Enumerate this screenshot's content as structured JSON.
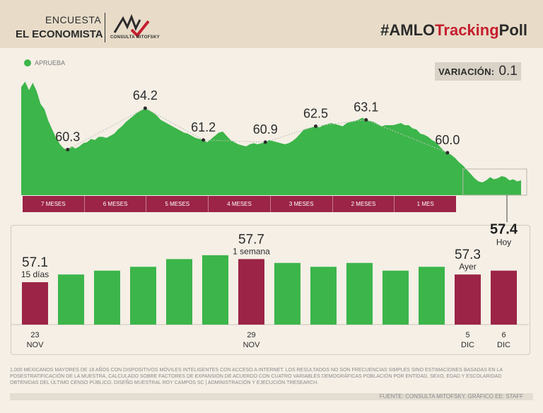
{
  "header": {
    "brand_line1": "ENCUESTA",
    "brand_line2": "EL ECONOMISTA",
    "logo_text": "CONSULTA MITOFSKY",
    "hashtag_part1": "#AMLO",
    "hashtag_part2": "Tracking",
    "hashtag_part3": "Poll"
  },
  "legend": {
    "label": "APRUEBA",
    "color": "#3cb54a"
  },
  "variation": {
    "label": "VARIACIÓN:",
    "value": "0.1"
  },
  "colors": {
    "green": "#3cb54a",
    "maroon": "#9b2447",
    "accent": "#c41f2e"
  },
  "chart_data": [
    {
      "type": "area",
      "title": "APRUEBA",
      "series": [
        {
          "name": "APRUEBA",
          "values": [
            66.2,
            66.7,
            65.9,
            66.6,
            65.8,
            64.6,
            64.1,
            63.0,
            62.2,
            61.4,
            60.8,
            60.4,
            60.3,
            60.6,
            60.4,
            60.6,
            60.9,
            61.0,
            61.3,
            61.2,
            61.5,
            61.5,
            61.4,
            61.6,
            61.8,
            62.2,
            62.5,
            62.9,
            63.2,
            63.5,
            63.8,
            64.0,
            64.2,
            64.0,
            63.8,
            63.5,
            63.1,
            62.9,
            62.7,
            62.5,
            62.3,
            62.1,
            61.9,
            61.8,
            61.6,
            61.4,
            61.3,
            61.2,
            61.0,
            61.3,
            61.6,
            61.9,
            62.0,
            61.6,
            61.2,
            61.0,
            60.8,
            60.7,
            60.6,
            60.8,
            60.9,
            60.8,
            60.9,
            61.0,
            61.2,
            61.1,
            61.0,
            60.9,
            60.8,
            60.9,
            61.1,
            61.4,
            61.8,
            62.2,
            62.3,
            62.4,
            62.5,
            62.4,
            62.6,
            62.7,
            62.8,
            62.7,
            62.6,
            62.5,
            62.8,
            62.9,
            63.0,
            63.1,
            63.3,
            63.1,
            63.0,
            62.9,
            62.7,
            62.5,
            62.6,
            62.6,
            62.6,
            62.7,
            62.8,
            62.6,
            62.6,
            62.3,
            62.2,
            61.8,
            61.7,
            61.5,
            61.2,
            61.0,
            60.6,
            60.2,
            60.0,
            59.8,
            59.5,
            59.1,
            58.8,
            58.4,
            58.0,
            57.6,
            57.3,
            57.2,
            57.4,
            57.7,
            57.5,
            57.6,
            57.8,
            57.7,
            57.4,
            57.5,
            57.3,
            57.4
          ],
          "peak_labels": [
            {
              "index": 12,
              "value": "60.3"
            },
            {
              "index": 32,
              "value": "64.2"
            },
            {
              "index": 47,
              "value": "61.2"
            },
            {
              "index": 63,
              "value": "60.9"
            },
            {
              "index": 76,
              "value": "62.5"
            },
            {
              "index": 89,
              "value": "63.1"
            },
            {
              "index": 110,
              "value": "60.0"
            }
          ]
        }
      ],
      "periods": [
        "7 MESES",
        "6 MESES",
        "5 MESES",
        "4 MESES",
        "3 MESES",
        "2 MESES",
        "1 MES"
      ],
      "ylim": [
        56,
        68
      ]
    },
    {
      "type": "bar",
      "series": [
        {
          "name": "APRUEBA",
          "values": [
            57.1,
            57.3,
            57.4,
            57.5,
            57.7,
            57.8,
            57.7,
            57.6,
            57.5,
            57.6,
            57.4,
            57.5,
            57.3,
            57.4
          ],
          "highlight": [
            0,
            6,
            12,
            13
          ]
        }
      ],
      "ylim": [
        56,
        58
      ],
      "value_labels": [
        {
          "index": 0,
          "value": "57.1",
          "note": "15 días"
        },
        {
          "index": 6,
          "value": "57.7",
          "note": "1 semana"
        },
        {
          "index": 12,
          "value": "57.3",
          "note": "Ayer"
        },
        {
          "index": 13,
          "value": "57.4",
          "note": "Hoy"
        }
      ],
      "date_labels": [
        {
          "index": 0,
          "day": "23",
          "month": "NOV"
        },
        {
          "index": 6,
          "day": "29",
          "month": "NOV"
        },
        {
          "index": 12,
          "day": "5",
          "month": "DIC"
        },
        {
          "index": 13,
          "day": "6",
          "month": "DIC"
        }
      ]
    }
  ],
  "footnote": "1,000 MEXICANOS MAYORES DE 18 AÑOS CON DISPOSITIVOS MÓVILES INTELIGENTES CON ACCESO A INTERNET. LOS RESULTADOS NO SON FRECUENCIAS SIMPLES SINO ESTIMACIONES BASADAS EN LA POSESTRATIFICACIÓN DE LA MUESTRA, CALCULADO SOBRE FACTORES DE EXPANSIÓN DE ACUERDO CON CUATRO VARIABLES DEMOGRÁFICAS POBLACIÓN POR ENTIDAD, SEXO, EDAD Y ESCOLARIDAD OBTENIDAS DEL ÚLTIMO CENSO PÚBLICO. DISEÑO MUESTRAL ROY CAMPOS SC | ADMINISTRACIÓN Y EJECUCIÓN TRESEARCH.",
  "source": "FUENTE: CONSULTA MITOFSKY. GRÁFICO EE: STAFF"
}
